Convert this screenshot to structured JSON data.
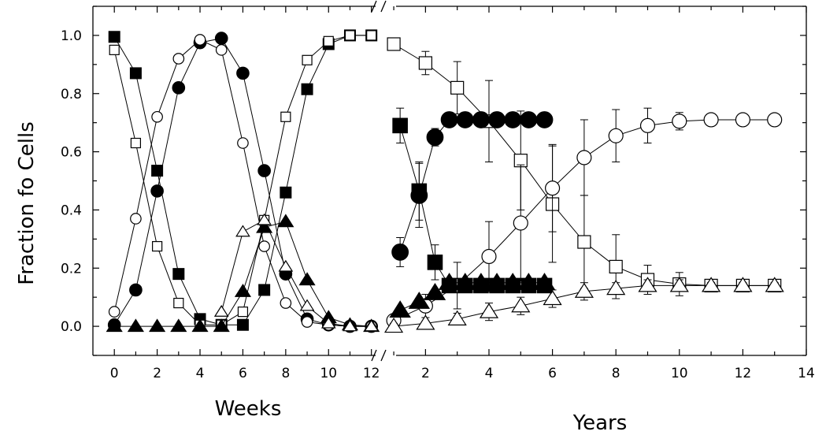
{
  "chart_data": [
    {
      "type": "line",
      "title": "",
      "xlabel": "Weeks",
      "ylabel": "Fraction fo Cells",
      "xlim": [
        -1,
        12.6
      ],
      "ylim": [
        -0.1,
        1.1
      ],
      "xticks": [
        0,
        2,
        4,
        6,
        8,
        10,
        12
      ],
      "yticks": [
        0.0,
        0.2,
        0.4,
        0.6,
        0.8,
        1.0
      ],
      "ytick_labels": [
        "0.0",
        "0.2",
        "0.4",
        "0.6",
        "0.8",
        "1.0"
      ],
      "series": [
        {
          "marker": "square",
          "fill": "filled",
          "x": [
            0,
            1,
            2,
            3,
            4,
            5,
            6,
            7,
            8,
            9,
            10,
            11,
            12
          ],
          "y": [
            0.995,
            0.87,
            0.535,
            0.18,
            0.025,
            0.005,
            0.005,
            0.125,
            0.46,
            0.815,
            0.97,
            1.0,
            1.0
          ]
        },
        {
          "marker": "square",
          "fill": "open",
          "x": [
            0,
            1,
            2,
            3,
            4,
            5,
            6,
            7,
            8,
            9,
            10,
            11,
            12
          ],
          "y": [
            0.95,
            0.63,
            0.275,
            0.08,
            0.005,
            0.005,
            0.05,
            0.365,
            0.72,
            0.915,
            0.98,
            1.0,
            1.0
          ]
        },
        {
          "marker": "circle",
          "fill": "filled",
          "x": [
            0,
            1,
            2,
            3,
            4,
            5,
            6,
            7,
            8,
            9,
            10,
            11,
            12
          ],
          "y": [
            0.005,
            0.125,
            0.465,
            0.82,
            0.975,
            0.99,
            0.87,
            0.535,
            0.18,
            0.025,
            0.005,
            0.0,
            0.0
          ]
        },
        {
          "marker": "circle",
          "fill": "open",
          "x": [
            0,
            1,
            2,
            3,
            4,
            5,
            6,
            7,
            8,
            9,
            10,
            11,
            12
          ],
          "y": [
            0.05,
            0.37,
            0.72,
            0.92,
            0.985,
            0.95,
            0.63,
            0.275,
            0.08,
            0.015,
            0.005,
            0.0,
            0.0
          ]
        },
        {
          "marker": "triangle",
          "fill": "filled",
          "x": [
            0,
            1,
            2,
            3,
            4,
            5,
            6,
            7,
            8,
            9,
            10,
            11,
            12
          ],
          "y": [
            0.0,
            0.0,
            0.0,
            0.0,
            0.0,
            0.0,
            0.12,
            0.34,
            0.36,
            0.16,
            0.03,
            0.005,
            0.0
          ]
        },
        {
          "marker": "triangle",
          "fill": "open",
          "x": [
            5,
            6,
            7,
            8,
            9,
            10,
            11,
            12
          ],
          "y": [
            0.05,
            0.325,
            0.365,
            0.205,
            0.07,
            0.01,
            0.0,
            0.0
          ]
        }
      ]
    },
    {
      "type": "line",
      "title": "",
      "xlabel": "Years",
      "ylabel": "",
      "xlim": [
        0.75,
        14
      ],
      "ylim": [
        -0.1,
        1.1
      ],
      "xticks": [
        2,
        4,
        6,
        8,
        10,
        12,
        14
      ],
      "series": [
        {
          "marker": "square",
          "fill": "open",
          "x": [
            1,
            2,
            3,
            4,
            5,
            6,
            7,
            8,
            9,
            10,
            11,
            12,
            13
          ],
          "y": [
            0.97,
            0.905,
            0.82,
            0.705,
            0.57,
            0.42,
            0.29,
            0.205,
            0.16,
            0.145,
            0.14,
            0.14,
            0.14
          ],
          "err": [
            0.015,
            0.04,
            0.09,
            0.14,
            0.17,
            0.2,
            0.16,
            0.11,
            0.05,
            0.04,
            0.015,
            0.01,
            0.01
          ]
        },
        {
          "marker": "circle",
          "fill": "open",
          "x": [
            1,
            2,
            3,
            4,
            5,
            6,
            7,
            8,
            9,
            10,
            11,
            12,
            13
          ],
          "y": [
            0.02,
            0.07,
            0.14,
            0.24,
            0.355,
            0.475,
            0.58,
            0.655,
            0.69,
            0.705,
            0.71,
            0.71,
            0.71
          ],
          "err": [
            0.01,
            0.04,
            0.08,
            0.12,
            0.2,
            0.15,
            0.13,
            0.09,
            0.06,
            0.03,
            0.015,
            0.01,
            0.01
          ]
        },
        {
          "marker": "triangle",
          "fill": "open",
          "x": [
            1,
            2,
            3,
            4,
            5,
            6,
            7,
            8,
            9,
            10,
            11,
            12,
            13
          ],
          "y": [
            0.0,
            0.01,
            0.025,
            0.05,
            0.07,
            0.095,
            0.12,
            0.13,
            0.14,
            0.14,
            0.14,
            0.14,
            0.14
          ],
          "err": [
            0.01,
            0.02,
            0.02,
            0.03,
            0.03,
            0.03,
            0.03,
            0.02,
            0.02,
            0.02,
            0.01,
            0.01,
            0.01
          ]
        },
        {
          "marker": "square",
          "fill": "filled",
          "x": [
            1.2,
            1.8,
            2.3,
            2.75,
            3.25,
            3.75,
            4.25,
            4.75,
            5.25,
            5.75
          ],
          "y": [
            0.69,
            0.465,
            0.22,
            0.14,
            0.14,
            0.14,
            0.14,
            0.14,
            0.14,
            0.14
          ],
          "err": [
            0.06,
            0.1,
            0.06,
            0,
            0,
            0,
            0,
            0,
            0,
            0
          ]
        },
        {
          "marker": "circle",
          "fill": "filled",
          "x": [
            1.2,
            1.8,
            2.3,
            2.75,
            3.25,
            3.75,
            4.25,
            4.75,
            5.25,
            5.75
          ],
          "y": [
            0.255,
            0.45,
            0.65,
            0.71,
            0.71,
            0.71,
            0.71,
            0.71,
            0.71,
            0.71
          ],
          "err": [
            0.05,
            0.11,
            0.03,
            0,
            0,
            0,
            0,
            0,
            0,
            0
          ]
        },
        {
          "marker": "triangle",
          "fill": "filled",
          "x": [
            1.2,
            1.8,
            2.3,
            2.75,
            3.25,
            3.75,
            4.25,
            4.75,
            5.25,
            5.75
          ],
          "y": [
            0.055,
            0.085,
            0.115,
            0.15,
            0.15,
            0.15,
            0.15,
            0.15,
            0.15,
            0.15
          ],
          "err": [
            0,
            0,
            0,
            0,
            0,
            0,
            0,
            0,
            0,
            0
          ]
        }
      ]
    }
  ]
}
